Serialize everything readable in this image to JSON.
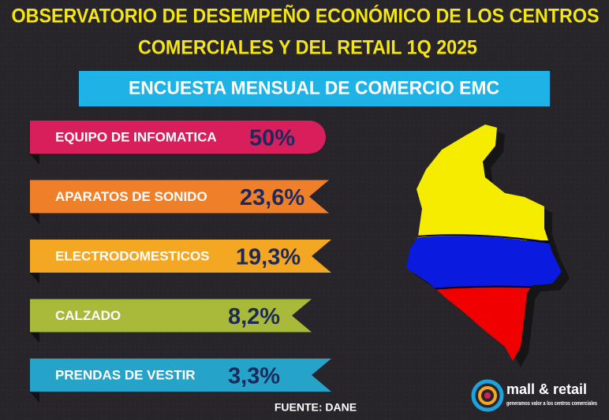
{
  "header": {
    "title_line1": "OBSERVATORIO DE DESEMPEÑO  ECONÓMICO DE LOS CENTROS",
    "title_line2": "COMERCIALES Y DEL RETAIL 1Q 2025",
    "subtitle": "ENCUESTA MENSUAL DE COMERCIO EMC"
  },
  "items": [
    {
      "label": "EQUIPO DE INFOMATICA",
      "value": "50%"
    },
    {
      "label": "APARATOS DE SONIDO",
      "value": "23,6%"
    },
    {
      "label": "ELECTRODOMESTICOS",
      "value": "19,3%"
    },
    {
      "label": "CALZADO",
      "value": "8,2%"
    },
    {
      "label": "PRENDAS DE VESTIR",
      "value": "3,3%"
    }
  ],
  "source": "FUENTE: DANE",
  "logo": {
    "name": "mall & retail",
    "tagline": "generamos valor a los centros comerciales"
  }
}
